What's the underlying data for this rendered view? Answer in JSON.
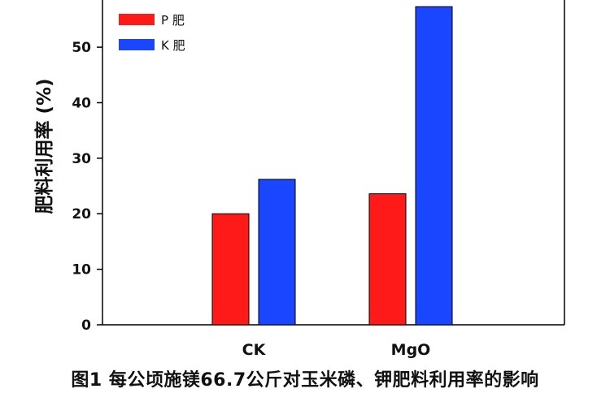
{
  "chart_data": {
    "type": "bar",
    "categories": [
      "CK",
      "MgO"
    ],
    "series": [
      {
        "name": "P 肥",
        "values": [
          20,
          23.6
        ],
        "color": "#ff1a1a"
      },
      {
        "name": "K 肥",
        "values": [
          26.2,
          57.3
        ],
        "color": "#1a46ff"
      }
    ],
    "ylabel": "肥料利用率 (%)",
    "xlabel": "",
    "ylim": [
      0,
      58.5
    ],
    "yticks": [
      "0",
      "10",
      "20",
      "30",
      "40",
      "50"
    ],
    "grid": false,
    "legend_position": "top-left"
  },
  "caption": "图1 每公顷施镁66.7公斤对玉米磷、钾肥料利用率的影响"
}
